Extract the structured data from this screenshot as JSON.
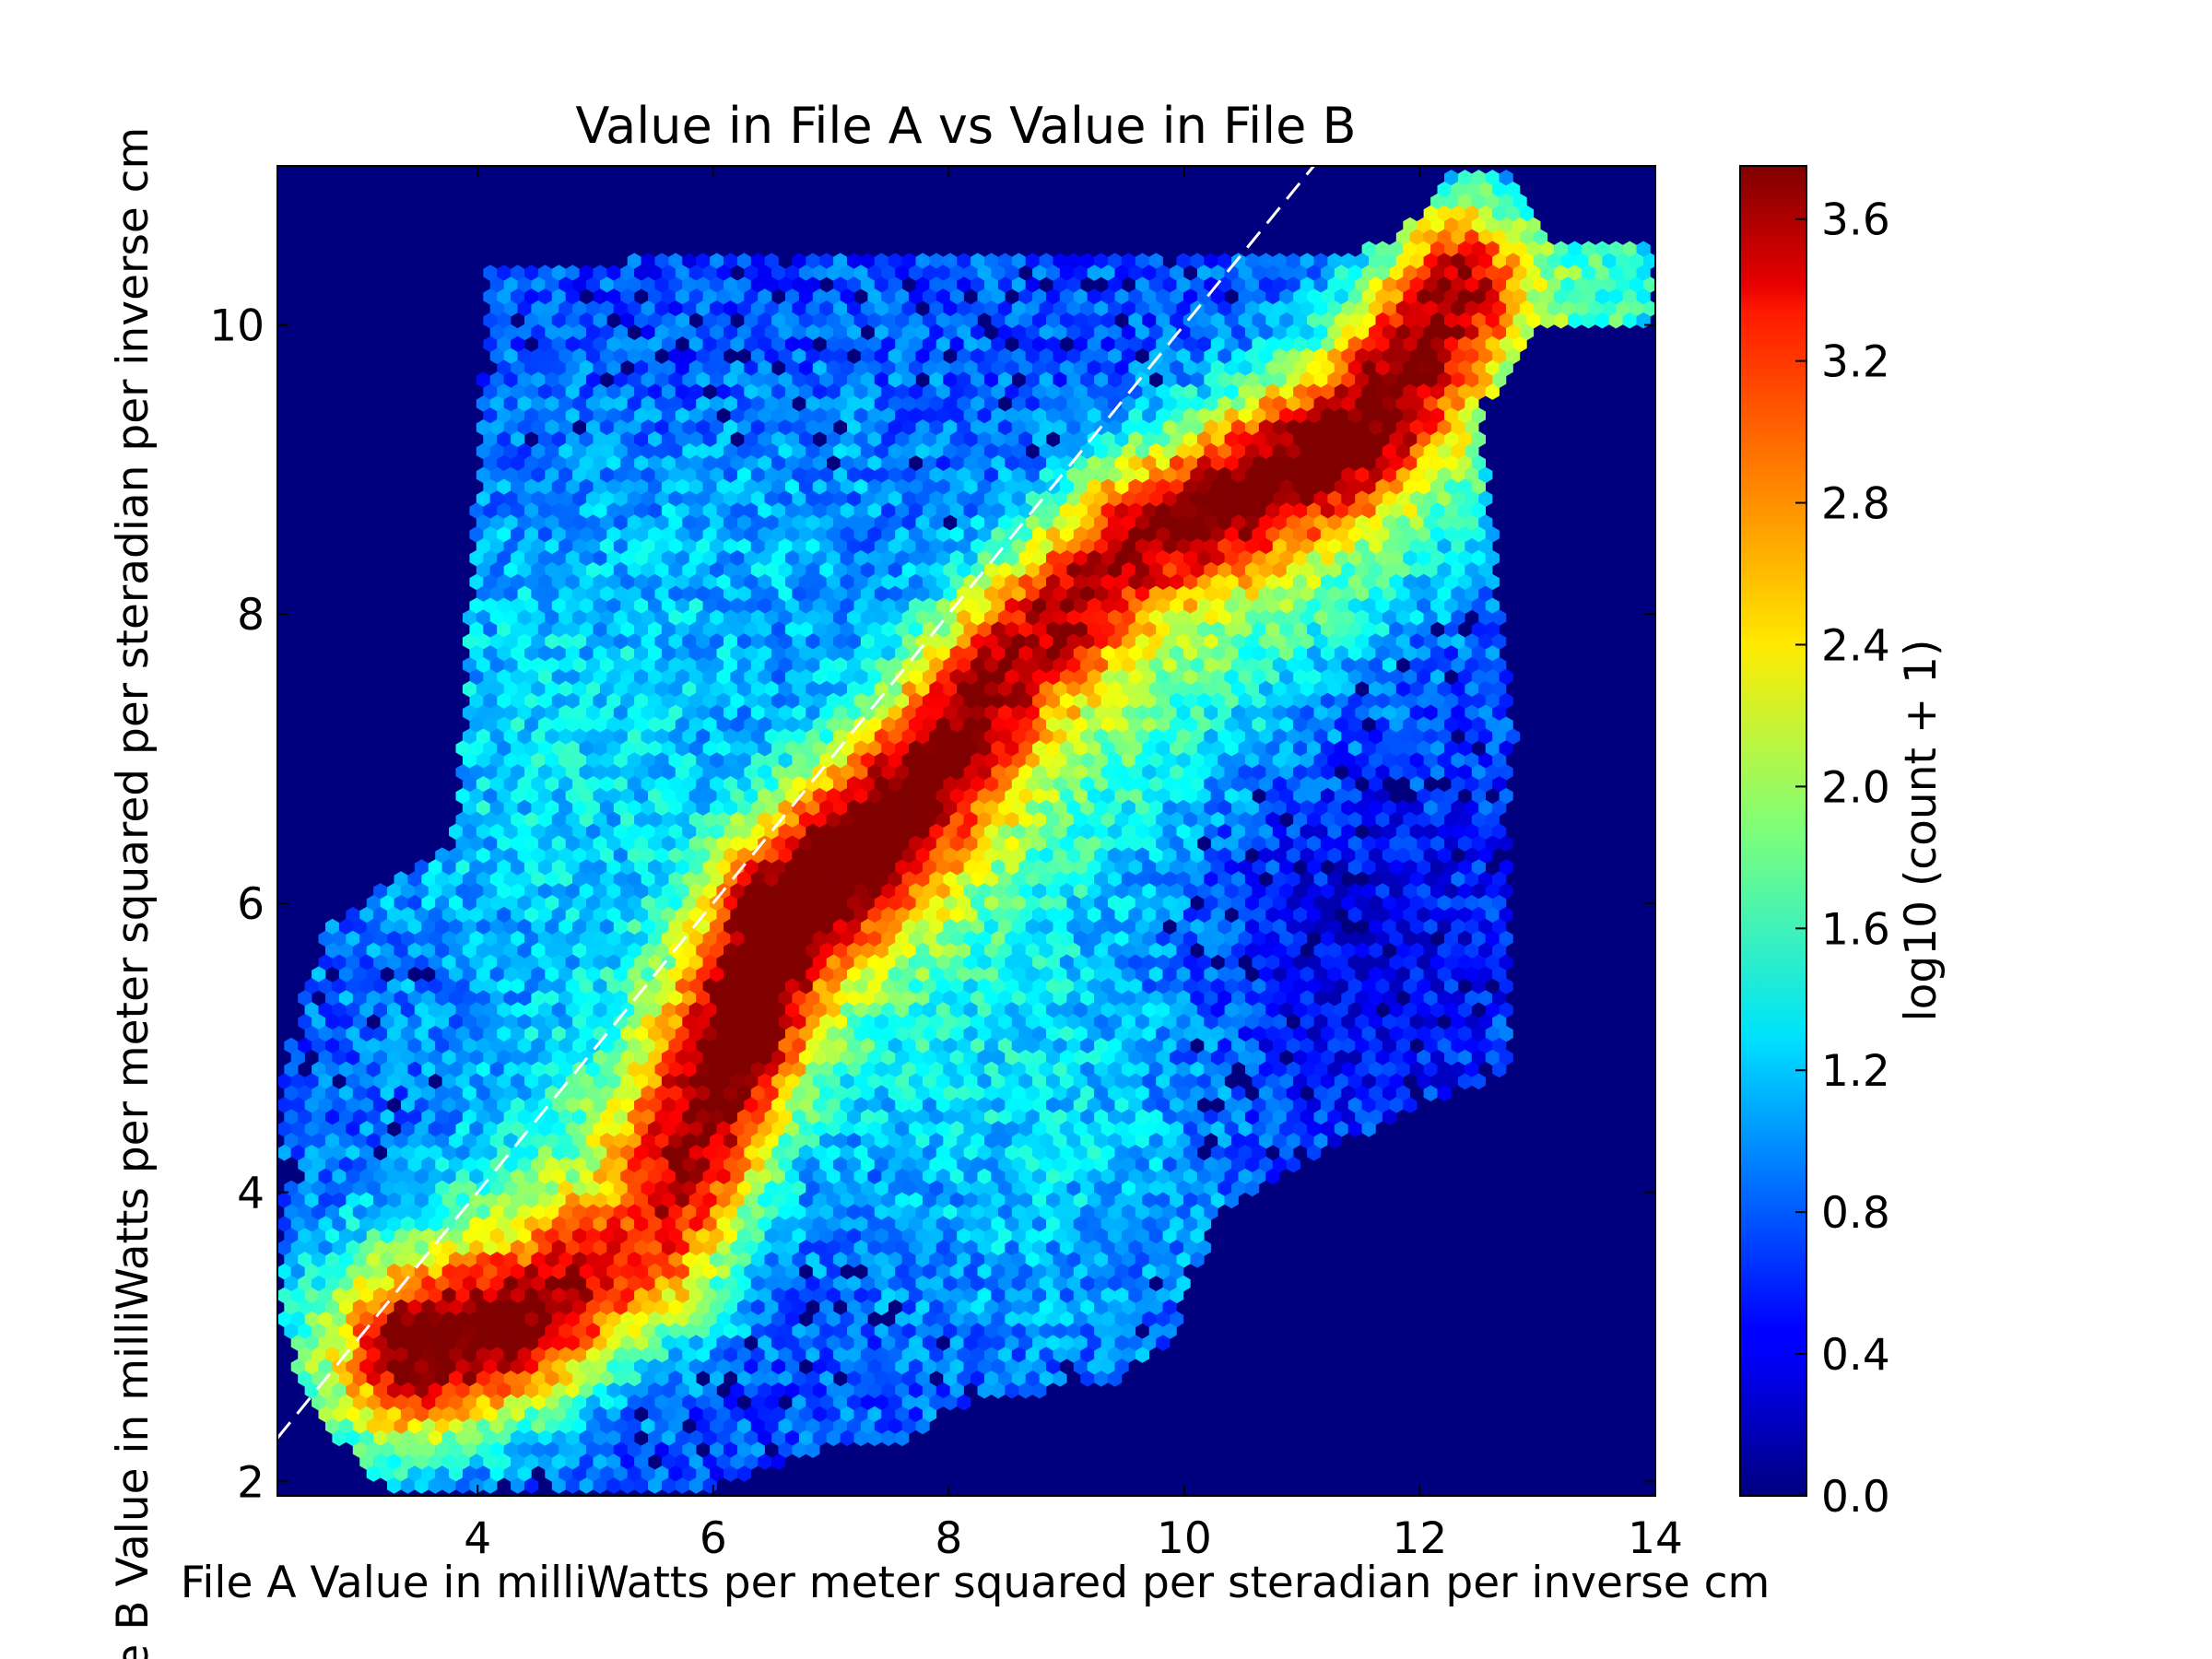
{
  "chart_data": {
    "type": "heatmap",
    "subtype": "hexbin",
    "title": "Value in File A vs Value in File B",
    "xlabel": "File A Value in milliWatts per meter squared per steradian per inverse cm",
    "ylabel": "File B Value in milliWatts per meter squared per steradian per inverse cm",
    "xlim": [
      2.3,
      14
    ],
    "ylim": [
      1.9,
      11.1
    ],
    "x_ticks": [
      4,
      6,
      8,
      10,
      12,
      14
    ],
    "y_ticks": [
      2,
      4,
      6,
      8,
      10
    ],
    "x_tick_labels": [
      "4",
      "6",
      "8",
      "10",
      "12",
      "14"
    ],
    "y_tick_labels": [
      "2",
      "4",
      "6",
      "8",
      "10"
    ],
    "background_color": "#00007f",
    "colormap": "jet",
    "colorbar": {
      "label": "log10 (count + 1)",
      "range": [
        0.0,
        3.75
      ],
      "ticks": [
        0.0,
        0.4,
        0.8,
        1.2,
        1.6,
        2.0,
        2.4,
        2.8,
        3.2,
        3.6
      ],
      "tick_labels": [
        "0.0",
        "0.4",
        "0.8",
        "1.2",
        "1.6",
        "2.0",
        "2.4",
        "2.8",
        "3.2",
        "3.6"
      ]
    },
    "reference_line": {
      "style": "dashed",
      "color": "#ffffff",
      "slope": 1,
      "intercept": 0
    },
    "density_ridges": [
      {
        "x": [
          3.5,
          4.5,
          5.5,
          6.5,
          7.5,
          8.5,
          9.5,
          10.5,
          11.5,
          12.3
        ],
        "y": [
          2.9,
          3.1,
          3.6,
          5.9,
          6.6,
          7.7,
          8.5,
          8.9,
          9.3,
          10.3
        ],
        "peak_log_count": 3.75
      },
      {
        "x": [
          2.4,
          4.0,
          6.0,
          8.0,
          10.0,
          12.0,
          13.5
        ],
        "y": [
          2.6,
          3.3,
          5.0,
          6.4,
          7.6,
          9.1,
          10.2
        ],
        "peak_log_count": 2.6
      }
    ]
  }
}
